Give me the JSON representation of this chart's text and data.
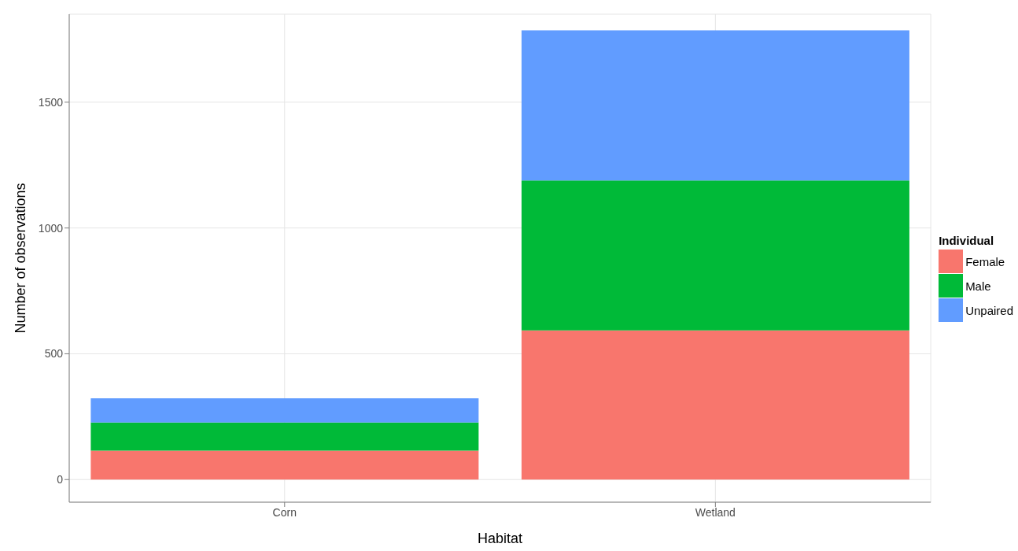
{
  "chart_data": {
    "type": "bar",
    "xlabel": "Habitat",
    "ylabel": "Number of observations",
    "legend_title": "Individual",
    "categories": [
      "Corn",
      "Wetland"
    ],
    "stacked": true,
    "series": [
      {
        "name": "Female",
        "color": "#f8766d",
        "values": [
          115,
          593
        ]
      },
      {
        "name": "Male",
        "color": "#00ba38",
        "values": [
          112,
          596
        ]
      },
      {
        "name": "Unpaired",
        "color": "#619cff",
        "values": [
          96,
          597
        ]
      }
    ],
    "ylim": [
      -90,
      1850
    ],
    "yticks": [
      0,
      500,
      1000,
      1500
    ],
    "grid": true,
    "legend": "right"
  }
}
